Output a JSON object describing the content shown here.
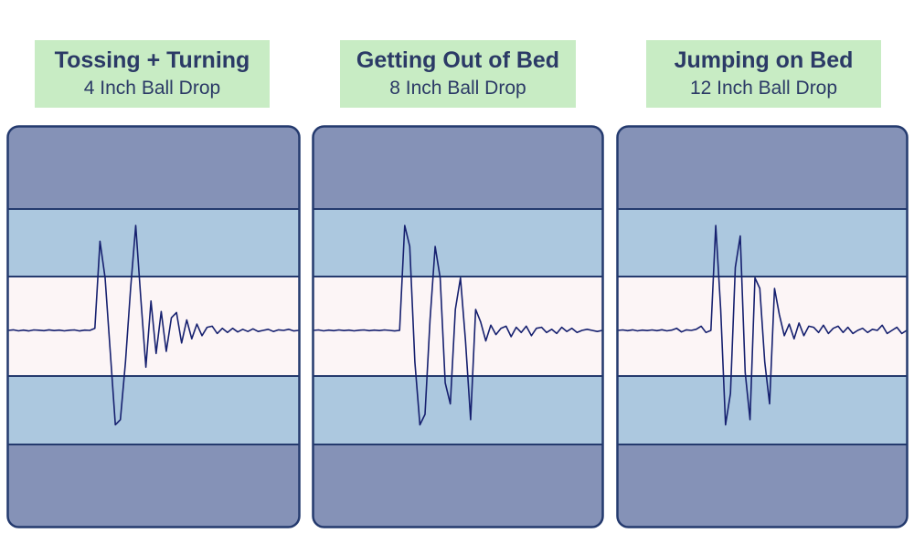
{
  "colors": {
    "label_bg": "#c8ecc4",
    "outer_band": "#8592b7",
    "mid_band": "#acc8df",
    "center_band": "#fcf5f6",
    "border": "#243a6e",
    "trace": "#16206f",
    "text": "#2b3a66"
  },
  "chart_data": [
    {
      "type": "line",
      "title": "Tossing + Turning",
      "subtitle": "4 Inch Ball Drop",
      "grid": false,
      "legend": "none",
      "ylim": [
        -1,
        1
      ],
      "y": [
        0,
        0.005,
        -0.004,
        0.003,
        -0.005,
        0.004,
        0.002,
        -0.003,
        0.005,
        -0.002,
        0.003,
        -0.004,
        0.002,
        0.004,
        -0.005,
        0.003,
        0.0,
        0.02,
        0.85,
        0.5,
        -0.2,
        -0.9,
        -0.85,
        -0.3,
        0.4,
        1.0,
        0.3,
        -0.35,
        0.28,
        -0.22,
        0.18,
        -0.2,
        0.12,
        0.17,
        -0.12,
        0.1,
        -0.08,
        0.06,
        -0.05,
        0.03,
        0.04,
        -0.03,
        0.02,
        -0.02,
        0.02,
        -0.015,
        0.01,
        -0.01,
        0.015,
        -0.01,
        0.0,
        0.01,
        -0.01,
        0.005,
        0.0,
        0.01,
        -0.005,
        0.0
      ]
    },
    {
      "type": "line",
      "title": "Getting Out of Bed",
      "subtitle": "8 Inch Ball Drop",
      "grid": false,
      "legend": "none",
      "ylim": [
        -1,
        1
      ],
      "y": [
        0,
        0.004,
        -0.004,
        0.003,
        -0.003,
        0.004,
        -0.002,
        0.003,
        -0.004,
        0.002,
        0.004,
        -0.003,
        0.003,
        -0.002,
        0.004,
        0.0,
        -0.005,
        0.0,
        1.0,
        0.8,
        -0.3,
        -0.9,
        -0.8,
        0.1,
        0.8,
        0.5,
        -0.5,
        -0.7,
        0.2,
        0.5,
        -0.1,
        -0.85,
        0.2,
        0.08,
        -0.1,
        0.05,
        -0.04,
        0.02,
        0.04,
        -0.06,
        0.03,
        -0.02,
        0.04,
        -0.05,
        0.02,
        0.03,
        -0.02,
        0.01,
        -0.03,
        0.03,
        -0.01,
        0.02,
        -0.02,
        0.0,
        0.01,
        0.0,
        -0.01,
        0.0
      ]
    },
    {
      "type": "line",
      "title": "Jumping on Bed",
      "subtitle": "12 Inch Ball Drop",
      "grid": false,
      "legend": "none",
      "ylim": [
        -1,
        1
      ],
      "y": [
        0,
        0.004,
        -0.003,
        0.005,
        -0.004,
        0.003,
        -0.002,
        0.004,
        -0.003,
        0.006,
        -0.004,
        0.003,
        0.02,
        -0.015,
        0.005,
        0.0,
        0.01,
        0.04,
        -0.02,
        0.0,
        1.0,
        0.2,
        -0.9,
        -0.6,
        0.6,
        0.9,
        -0.4,
        -0.85,
        0.5,
        0.4,
        -0.3,
        -0.7,
        0.4,
        0.15,
        -0.05,
        0.06,
        -0.08,
        0.07,
        -0.05,
        0.04,
        0.03,
        -0.02,
        0.05,
        -0.03,
        0.02,
        0.04,
        -0.02,
        0.03,
        -0.03,
        0.0,
        0.02,
        -0.02,
        0.01,
        0.0,
        0.05,
        -0.03,
        0.0,
        0.03,
        -0.03,
        0.0
      ]
    }
  ]
}
